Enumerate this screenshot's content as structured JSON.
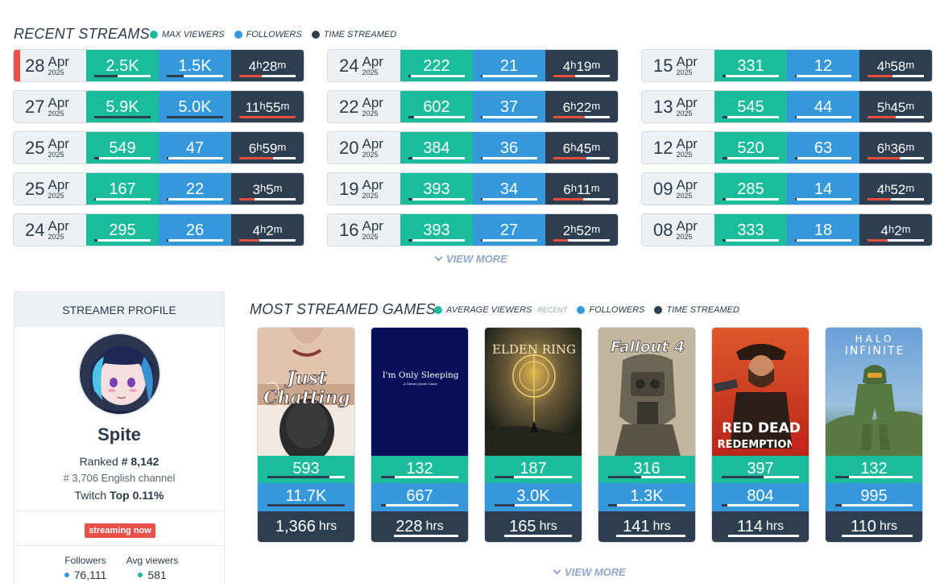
{
  "recent": {
    "title": "RECENT STREAMS",
    "legend": [
      {
        "label": "MAX VIEWERS",
        "color": "#1abc9c"
      },
      {
        "label": "FOLLOWERS",
        "color": "#3498db"
      },
      {
        "label": "TIME STREAMED",
        "color": "#2c3e50"
      }
    ],
    "rows": [
      {
        "day": "28",
        "month": "Apr",
        "year": "2025",
        "viewers": "2.5K",
        "followers": "1.5K",
        "hours": "4",
        "minutes": "28",
        "vfill": 0.42,
        "ffill": 0.3,
        "tfill": 0.4,
        "live": true
      },
      {
        "day": "24",
        "month": "Apr",
        "year": "2025",
        "viewers": "222",
        "followers": "21",
        "hours": "4",
        "minutes": "19",
        "vfill": 0.04,
        "ffill": 0.02,
        "tfill": 0.38
      },
      {
        "day": "15",
        "month": "Apr",
        "year": "2025",
        "viewers": "331",
        "followers": "12",
        "hours": "4",
        "minutes": "58",
        "vfill": 0.06,
        "ffill": 0.02,
        "tfill": 0.44
      },
      {
        "day": "27",
        "month": "Apr",
        "year": "2025",
        "viewers": "5.9K",
        "followers": "5.0K",
        "hours": "11",
        "minutes": "55",
        "vfill": 1.0,
        "ffill": 1.0,
        "tfill": 1.0
      },
      {
        "day": "22",
        "month": "Apr",
        "year": "2025",
        "viewers": "602",
        "followers": "37",
        "hours": "6",
        "minutes": "22",
        "vfill": 0.1,
        "ffill": 0.03,
        "tfill": 0.55
      },
      {
        "day": "13",
        "month": "Apr",
        "year": "2025",
        "viewers": "545",
        "followers": "44",
        "hours": "5",
        "minutes": "45",
        "vfill": 0.09,
        "ffill": 0.03,
        "tfill": 0.5
      },
      {
        "day": "25",
        "month": "Apr",
        "year": "2025",
        "viewers": "549",
        "followers": "47",
        "hours": "6",
        "minutes": "59",
        "vfill": 0.09,
        "ffill": 0.03,
        "tfill": 0.6
      },
      {
        "day": "20",
        "month": "Apr",
        "year": "2025",
        "viewers": "384",
        "followers": "36",
        "hours": "6",
        "minutes": "45",
        "vfill": 0.07,
        "ffill": 0.03,
        "tfill": 0.58
      },
      {
        "day": "12",
        "month": "Apr",
        "year": "2025",
        "viewers": "520",
        "followers": "63",
        "hours": "6",
        "minutes": "36",
        "vfill": 0.09,
        "ffill": 0.04,
        "tfill": 0.57
      },
      {
        "day": "25",
        "month": "Apr",
        "year": "2025",
        "viewers": "167",
        "followers": "22",
        "hours": "3",
        "minutes": "5",
        "vfill": 0.03,
        "ffill": 0.02,
        "tfill": 0.27
      },
      {
        "day": "19",
        "month": "Apr",
        "year": "2025",
        "viewers": "393",
        "followers": "34",
        "hours": "6",
        "minutes": "11",
        "vfill": 0.07,
        "ffill": 0.03,
        "tfill": 0.53
      },
      {
        "day": "09",
        "month": "Apr",
        "year": "2025",
        "viewers": "285",
        "followers": "14",
        "hours": "4",
        "minutes": "52",
        "vfill": 0.05,
        "ffill": 0.02,
        "tfill": 0.42
      },
      {
        "day": "24",
        "month": "Apr",
        "year": "2025",
        "viewers": "295",
        "followers": "26",
        "hours": "4",
        "minutes": "2",
        "vfill": 0.05,
        "ffill": 0.02,
        "tfill": 0.35
      },
      {
        "day": "16",
        "month": "Apr",
        "year": "2025",
        "viewers": "393",
        "followers": "27",
        "hours": "2",
        "minutes": "52",
        "vfill": 0.07,
        "ffill": 0.02,
        "tfill": 0.25
      },
      {
        "day": "08",
        "month": "Apr",
        "year": "2025",
        "viewers": "333",
        "followers": "18",
        "hours": "4",
        "minutes": "2",
        "vfill": 0.06,
        "ffill": 0.02,
        "tfill": 0.35
      }
    ],
    "hour_unit": "h",
    "minute_unit": "m",
    "view_more": "VIEW MORE"
  },
  "profile": {
    "header": "STREAMER PROFILE",
    "name": "Spite",
    "ranked_label": "Ranked",
    "ranked_value": "# 8,142",
    "channel_rank": "# 3,706",
    "channel_label": "English channel",
    "platform_label": "Twitch",
    "top_label": "Top 0.11%",
    "status_badge": "streaming now",
    "followers_label": "Followers",
    "followers_value": "76,111",
    "avg_viewers_label": "Avg viewers",
    "avg_viewers_value": "581"
  },
  "games": {
    "title": "MOST STREAMED GAMES",
    "legend": [
      {
        "label": "AVERAGE VIEWERS",
        "sub": "RECENT",
        "color": "#1abc9c"
      },
      {
        "label": "FOLLOWERS",
        "color": "#3498db"
      },
      {
        "label": "TIME STREAMED",
        "color": "#2c3e50"
      }
    ],
    "items": [
      {
        "name": "Just Chatting",
        "viewers": "593",
        "followers": "11.7K",
        "hours": "1,366",
        "vfill": 0.8,
        "ffill": 1.0,
        "tfill": 1.0
      },
      {
        "name": "I'm Only Sleeping",
        "tagline": "A Simon Jones Game",
        "viewers": "132",
        "followers": "667",
        "hours": "228",
        "vfill": 0.18,
        "ffill": 0.06,
        "tfill": 0.17
      },
      {
        "name": "ELDEN RING",
        "viewers": "187",
        "followers": "3.0K",
        "hours": "165",
        "vfill": 0.25,
        "ffill": 0.26,
        "tfill": 0.12
      },
      {
        "name": "Fallout 4",
        "viewers": "316",
        "followers": "1.3K",
        "hours": "141",
        "vfill": 0.43,
        "ffill": 0.11,
        "tfill": 0.1
      },
      {
        "name": "RED DEAD REDEMPTION II",
        "viewers": "397",
        "followers": "804",
        "hours": "114",
        "vfill": 0.54,
        "ffill": 0.07,
        "tfill": 0.08
      },
      {
        "name": "HALO INFINITE",
        "viewers": "132",
        "followers": "995",
        "hours": "110",
        "vfill": 0.18,
        "ffill": 0.08,
        "tfill": 0.08
      }
    ],
    "hours_unit": "hrs",
    "view_more": "VIEW MORE"
  }
}
